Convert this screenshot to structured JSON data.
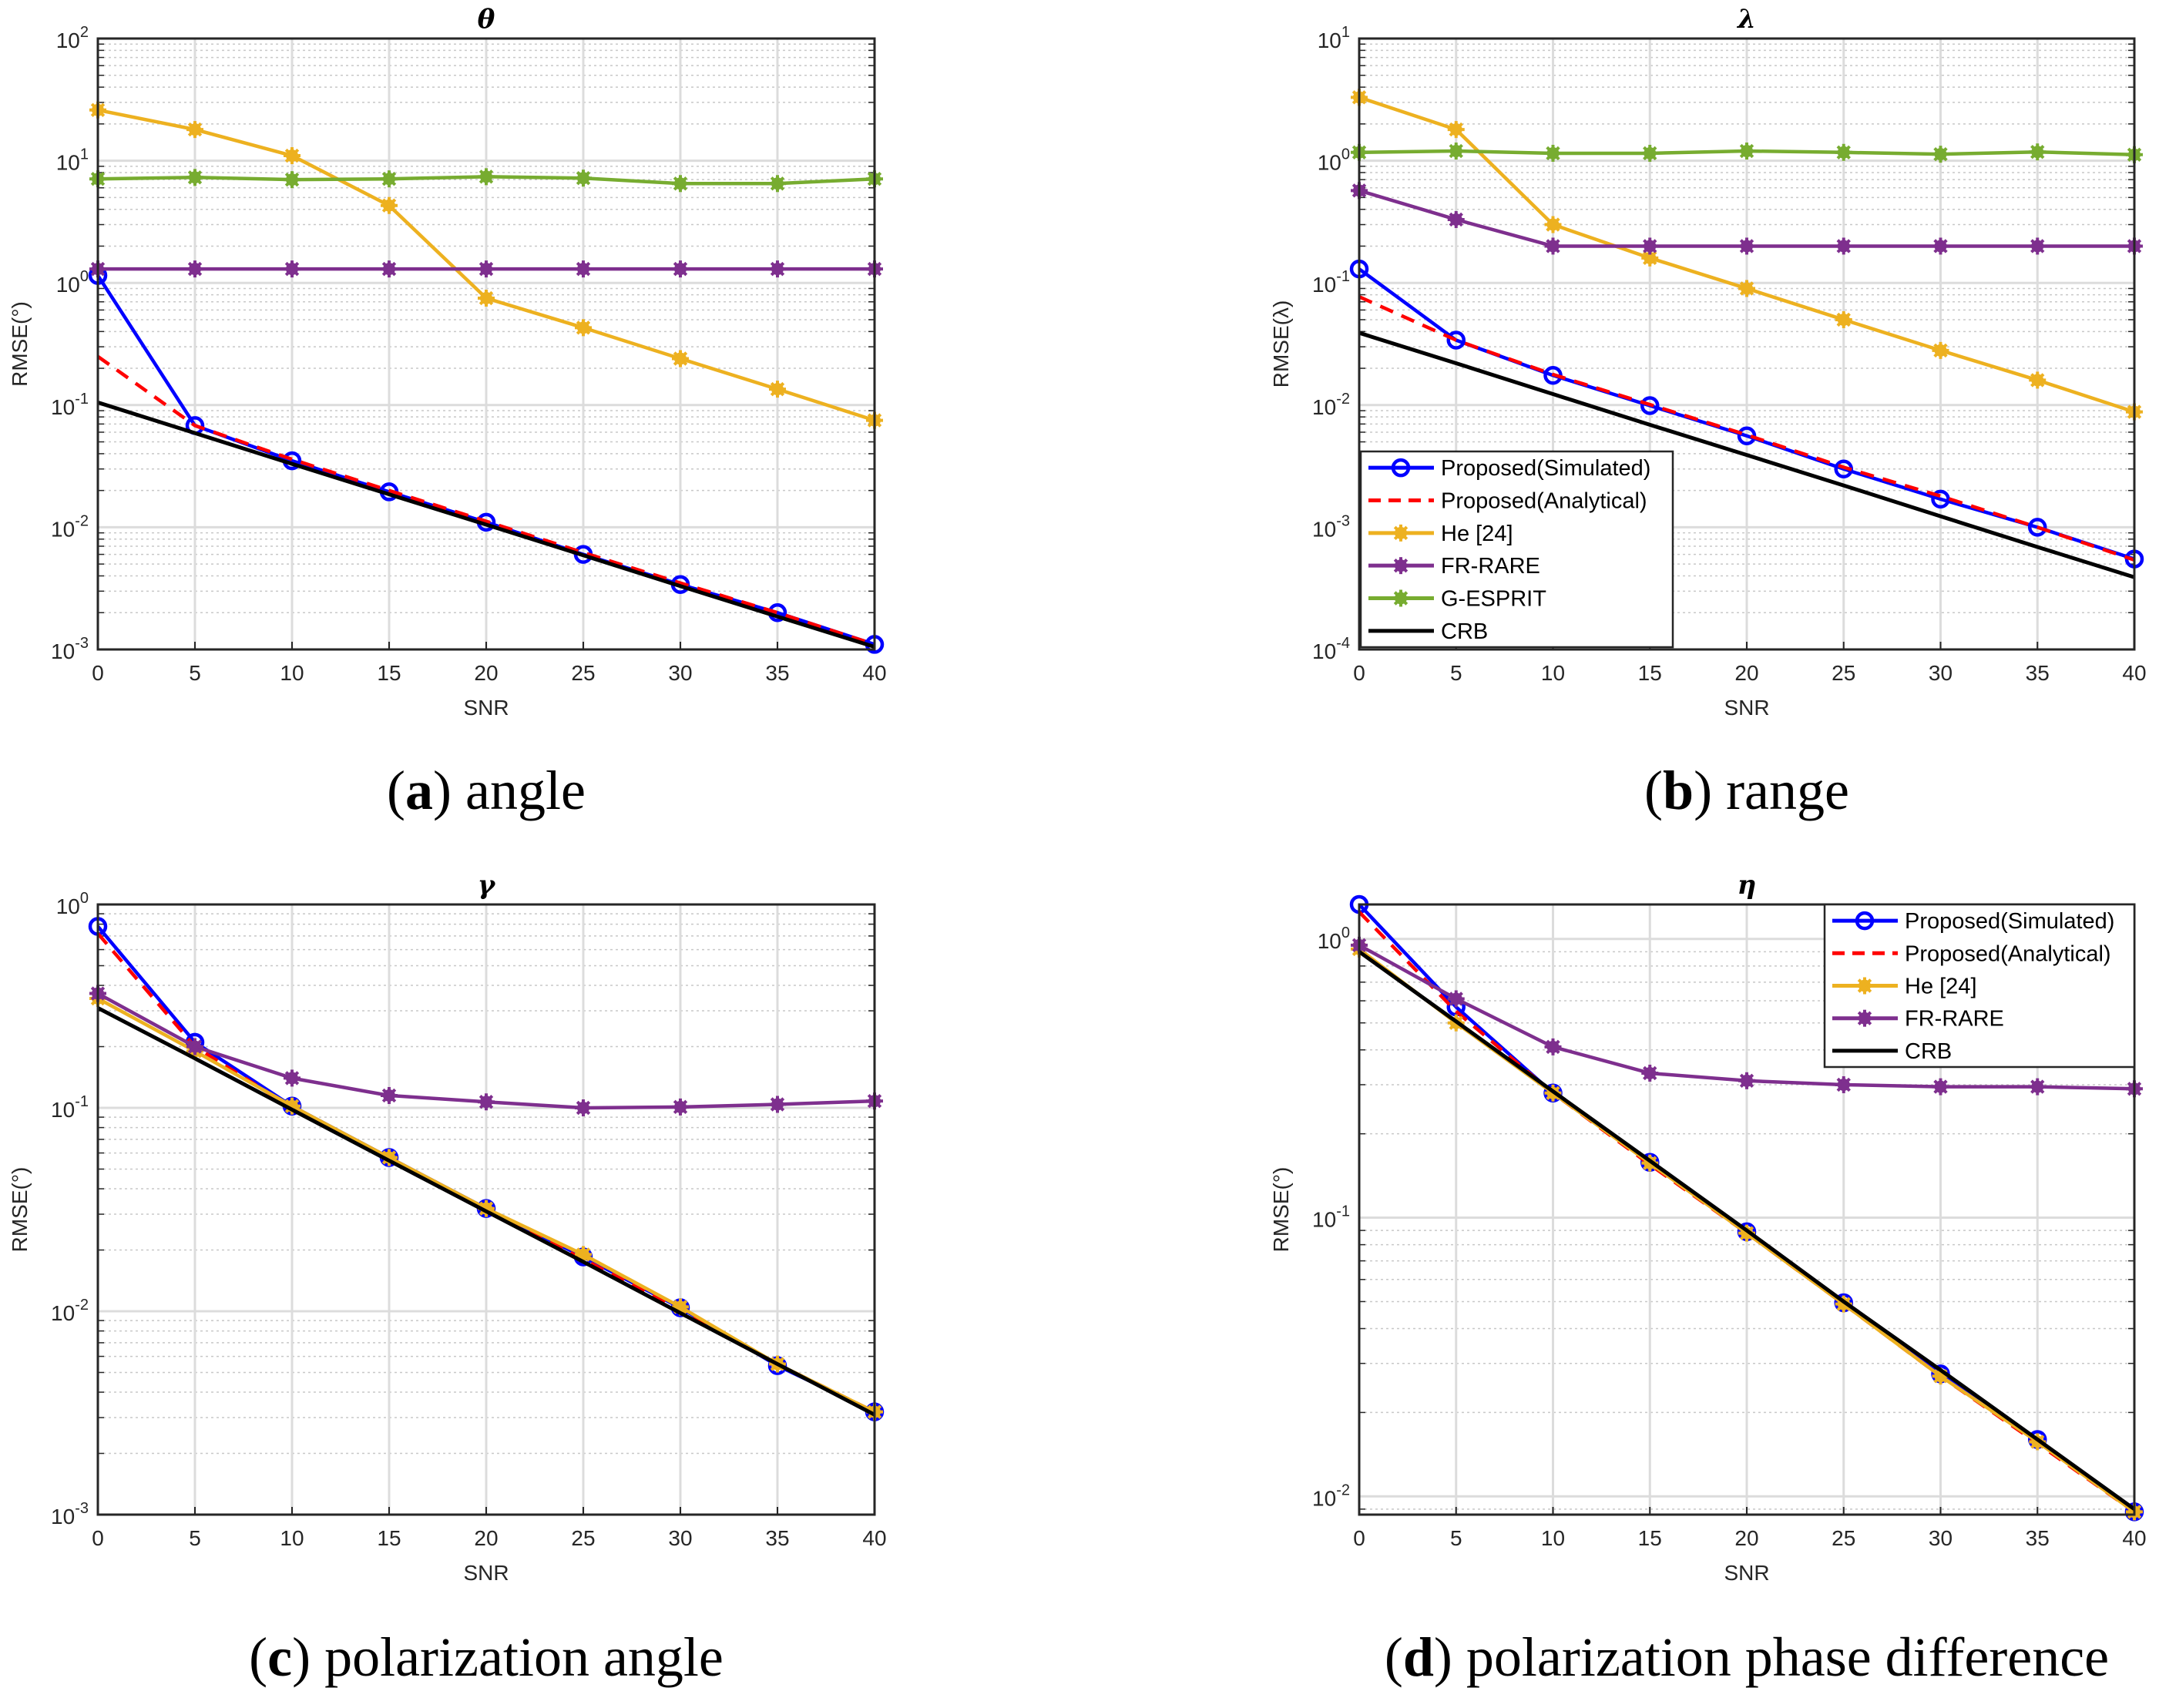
{
  "chart_data": [
    {
      "type": "line",
      "title": "θ",
      "xlabel": "SNR",
      "ylabel": "RMSE(°)",
      "yscale": "log",
      "xlim": [
        0,
        40
      ],
      "ylim": [
        0.001,
        100
      ],
      "grid": true,
      "x": [
        0,
        5,
        10,
        15,
        20,
        25,
        30,
        35,
        40
      ],
      "xticks": [
        "0",
        "5",
        "10",
        "15",
        "20",
        "25",
        "30",
        "35",
        "40"
      ],
      "ytick_exponents": [
        -3,
        -2,
        -1,
        0,
        1,
        2
      ],
      "series": [
        {
          "name": "Proposed(Simulated)",
          "color": "#0000ff",
          "dash": false,
          "marker": "circle",
          "values": [
            1.15,
            0.068,
            0.035,
            0.0195,
            0.011,
            0.006,
            0.0034,
            0.002,
            0.0011
          ]
        },
        {
          "name": "Proposed(Analytical)",
          "color": "#ff0000",
          "dash": true,
          "marker": "none",
          "values": [
            0.25,
            0.068,
            0.036,
            0.02,
            0.0112,
            0.0062,
            0.0035,
            0.002,
            0.0011
          ]
        },
        {
          "name": "He [24]",
          "color": "#EDB120",
          "dash": false,
          "marker": "asterisk",
          "values": [
            26,
            18,
            11,
            4.3,
            0.75,
            0.43,
            0.24,
            0.135,
            0.075
          ]
        },
        {
          "name": "FR-RARE",
          "color": "#7E2F8E",
          "dash": false,
          "marker": "asterisk",
          "values": [
            1.3,
            1.3,
            1.3,
            1.3,
            1.3,
            1.3,
            1.3,
            1.3,
            1.3
          ]
        },
        {
          "name": "G-ESPRIT",
          "color": "#77AC30",
          "dash": false,
          "marker": "asterisk",
          "values": [
            7.1,
            7.3,
            7.0,
            7.1,
            7.4,
            7.2,
            6.5,
            6.5,
            7.1
          ]
        },
        {
          "name": "CRB",
          "color": "#000000",
          "dash": false,
          "marker": "none",
          "values": [
            0.105,
            0.059,
            0.033,
            0.0186,
            0.0105,
            0.0059,
            0.0033,
            0.00186,
            0.00105
          ]
        }
      ],
      "legend": {
        "show": false
      },
      "caption": {
        "label": "a",
        "text": "angle"
      }
    },
    {
      "type": "line",
      "title": "λ",
      "xlabel": "SNR",
      "ylabel": "RMSE(λ)",
      "yscale": "log",
      "xlim": [
        0,
        40
      ],
      "ylim": [
        0.0001,
        10
      ],
      "grid": true,
      "x": [
        0,
        5,
        10,
        15,
        20,
        25,
        30,
        35,
        40
      ],
      "xticks": [
        "0",
        "5",
        "10",
        "15",
        "20",
        "25",
        "30",
        "35",
        "40"
      ],
      "ytick_exponents": [
        -4,
        -3,
        -2,
        -1,
        0,
        1
      ],
      "series": [
        {
          "name": "Proposed(Simulated)",
          "color": "#0000ff",
          "dash": false,
          "marker": "circle",
          "values": [
            0.13,
            0.034,
            0.0175,
            0.0099,
            0.0056,
            0.003,
            0.0017,
            0.001,
            0.00055
          ]
        },
        {
          "name": "Proposed(Analytical)",
          "color": "#ff0000",
          "dash": true,
          "marker": "none",
          "values": [
            0.077,
            0.034,
            0.0178,
            0.0101,
            0.0057,
            0.0031,
            0.0018,
            0.001,
            0.00054
          ]
        },
        {
          "name": "He [24]",
          "color": "#EDB120",
          "dash": false,
          "marker": "asterisk",
          "values": [
            3.3,
            1.8,
            0.3,
            0.16,
            0.09,
            0.05,
            0.028,
            0.016,
            0.0088
          ]
        },
        {
          "name": "FR-RARE",
          "color": "#7E2F8E",
          "dash": false,
          "marker": "asterisk",
          "values": [
            0.57,
            0.33,
            0.2,
            0.2,
            0.2,
            0.2,
            0.2,
            0.2,
            0.2
          ]
        },
        {
          "name": "G-ESPRIT",
          "color": "#77AC30",
          "dash": false,
          "marker": "asterisk",
          "values": [
            1.17,
            1.2,
            1.15,
            1.15,
            1.2,
            1.17,
            1.13,
            1.18,
            1.12
          ]
        },
        {
          "name": "CRB",
          "color": "#000000",
          "dash": false,
          "marker": "none",
          "values": [
            0.039,
            0.022,
            0.0123,
            0.0069,
            0.0039,
            0.0022,
            0.00123,
            0.00069,
            0.00039
          ]
        }
      ],
      "legend": {
        "show": true,
        "location": "bottom-left"
      },
      "caption": {
        "label": "b",
        "text": "range"
      }
    },
    {
      "type": "line",
      "title": "γ",
      "xlabel": "SNR",
      "ylabel": "RMSE(°)",
      "yscale": "log",
      "xlim": [
        0,
        40
      ],
      "ylim": [
        0.001,
        1
      ],
      "grid": true,
      "x": [
        0,
        5,
        10,
        15,
        20,
        25,
        30,
        35,
        40
      ],
      "xticks": [
        "0",
        "5",
        "10",
        "15",
        "20",
        "25",
        "30",
        "35",
        "40"
      ],
      "ytick_exponents": [
        -3,
        -2,
        -1,
        0
      ],
      "series": [
        {
          "name": "Proposed(Simulated)",
          "color": "#0000ff",
          "dash": false,
          "marker": "circle",
          "values": [
            0.78,
            0.21,
            0.102,
            0.057,
            0.032,
            0.0185,
            0.0104,
            0.0054,
            0.0032
          ]
        },
        {
          "name": "Proposed(Analytical)",
          "color": "#ff0000",
          "dash": true,
          "marker": "none",
          "values": [
            0.72,
            0.2,
            0.1,
            0.056,
            0.032,
            0.018,
            0.0102,
            0.0055,
            0.0032
          ]
        },
        {
          "name": "He [24]",
          "color": "#EDB120",
          "dash": false,
          "marker": "asterisk",
          "values": [
            0.345,
            0.19,
            0.102,
            0.057,
            0.032,
            0.019,
            0.0105,
            0.0055,
            0.0032
          ]
        },
        {
          "name": "FR-RARE",
          "color": "#7E2F8E",
          "dash": false,
          "marker": "asterisk",
          "values": [
            0.365,
            0.2,
            0.14,
            0.115,
            0.107,
            0.1,
            0.101,
            0.104,
            0.108
          ]
        },
        {
          "name": "CRB",
          "color": "#000000",
          "dash": false,
          "marker": "none",
          "values": [
            0.31,
            0.175,
            0.098,
            0.055,
            0.031,
            0.0175,
            0.0098,
            0.0055,
            0.0031
          ]
        }
      ],
      "legend": {
        "show": false
      },
      "caption": {
        "label": "c",
        "text": "polarization angle"
      }
    },
    {
      "type": "line",
      "title": "η",
      "xlabel": "SNR",
      "ylabel": "RMSE(°)",
      "yscale": "log",
      "xlim": [
        0,
        40
      ],
      "ylim": [
        0.0086,
        1.33
      ],
      "grid": true,
      "x": [
        0,
        5,
        10,
        15,
        20,
        25,
        30,
        35,
        40
      ],
      "xticks": [
        "0",
        "5",
        "10",
        "15",
        "20",
        "25",
        "30",
        "35",
        "40"
      ],
      "ytick_exponents": [
        -2,
        -1,
        0
      ],
      "series": [
        {
          "name": "Proposed(Simulated)",
          "color": "#0000ff",
          "dash": false,
          "marker": "circle",
          "values": [
            1.33,
            0.57,
            0.28,
            0.158,
            0.089,
            0.0495,
            0.0275,
            0.016,
            0.0088
          ]
        },
        {
          "name": "Proposed(Analytical)",
          "color": "#ff0000",
          "dash": true,
          "marker": "none",
          "values": [
            1.25,
            0.55,
            0.28,
            0.155,
            0.088,
            0.049,
            0.027,
            0.0155,
            0.0088
          ]
        },
        {
          "name": "He [24]",
          "color": "#EDB120",
          "dash": false,
          "marker": "asterisk",
          "values": [
            0.92,
            0.5,
            0.28,
            0.157,
            0.088,
            0.049,
            0.027,
            0.0157,
            0.0088
          ]
        },
        {
          "name": "FR-RARE",
          "color": "#7E2F8E",
          "dash": false,
          "marker": "asterisk",
          "values": [
            0.95,
            0.61,
            0.41,
            0.33,
            0.31,
            0.3,
            0.295,
            0.295,
            0.29
          ]
        },
        {
          "name": "CRB",
          "color": "#000000",
          "dash": false,
          "marker": "none",
          "values": [
            0.9,
            0.506,
            0.284,
            0.16,
            0.09,
            0.05,
            0.0284,
            0.016,
            0.009
          ]
        }
      ],
      "legend": {
        "show": true,
        "location": "top-right"
      },
      "caption": {
        "label": "d",
        "text": "polarization phase difference"
      }
    }
  ]
}
